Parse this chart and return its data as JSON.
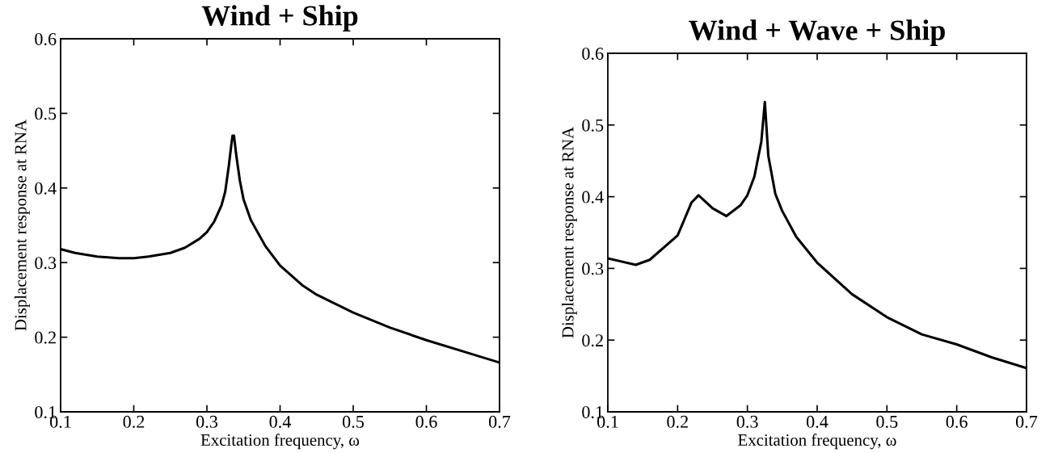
{
  "chart_data": [
    {
      "type": "line",
      "title": "Wind + Ship",
      "xlabel": "Excitation frequency, ω",
      "ylabel": "Displacement response at RNA",
      "xlim": [
        0.1,
        0.7
      ],
      "ylim": [
        0.1,
        0.6
      ],
      "xticks": [
        0.1,
        0.2,
        0.3,
        0.4,
        0.5,
        0.6,
        0.7
      ],
      "yticks": [
        0.1,
        0.2,
        0.3,
        0.4,
        0.5,
        0.6
      ],
      "grid": false,
      "legend": false,
      "series": [
        {
          "color": "#000000",
          "x": [
            0.1,
            0.12,
            0.15,
            0.18,
            0.2,
            0.22,
            0.25,
            0.27,
            0.29,
            0.3,
            0.31,
            0.32,
            0.325,
            0.33,
            0.333,
            0.335,
            0.337,
            0.34,
            0.345,
            0.35,
            0.36,
            0.38,
            0.4,
            0.43,
            0.45,
            0.5,
            0.55,
            0.6,
            0.65,
            0.7
          ],
          "values": [
            0.318,
            0.313,
            0.308,
            0.306,
            0.306,
            0.308,
            0.313,
            0.32,
            0.332,
            0.341,
            0.355,
            0.377,
            0.395,
            0.43,
            0.455,
            0.47,
            0.47,
            0.445,
            0.41,
            0.385,
            0.357,
            0.322,
            0.296,
            0.27,
            0.257,
            0.233,
            0.213,
            0.196,
            0.181,
            0.166
          ]
        }
      ]
    },
    {
      "type": "line",
      "title": "Wind + Wave + Ship",
      "xlabel": "Excitation frequency, ω",
      "ylabel": "Displacement response at RNA",
      "xlim": [
        0.1,
        0.7
      ],
      "ylim": [
        0.1,
        0.6
      ],
      "xticks": [
        0.1,
        0.2,
        0.3,
        0.4,
        0.5,
        0.6,
        0.7
      ],
      "yticks": [
        0.1,
        0.2,
        0.3,
        0.4,
        0.5,
        0.6
      ],
      "grid": false,
      "legend": false,
      "series": [
        {
          "color": "#000000",
          "x": [
            0.1,
            0.14,
            0.16,
            0.2,
            0.22,
            0.23,
            0.25,
            0.27,
            0.29,
            0.3,
            0.31,
            0.32,
            0.325,
            0.33,
            0.34,
            0.35,
            0.37,
            0.4,
            0.45,
            0.5,
            0.55,
            0.6,
            0.65,
            0.7
          ],
          "values": [
            0.314,
            0.305,
            0.312,
            0.346,
            0.392,
            0.402,
            0.384,
            0.373,
            0.388,
            0.402,
            0.428,
            0.477,
            0.532,
            0.457,
            0.404,
            0.38,
            0.344,
            0.308,
            0.264,
            0.232,
            0.208,
            0.194,
            0.176,
            0.161
          ]
        }
      ]
    }
  ]
}
